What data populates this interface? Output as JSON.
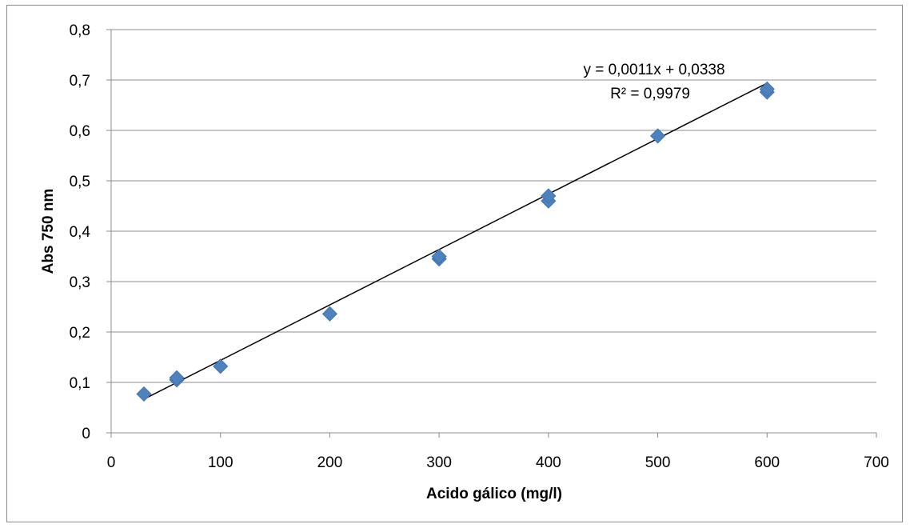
{
  "chart_data": {
    "type": "scatter",
    "xlabel": "Acido gálico (mg/l)",
    "ylabel": "Abs 750 nm",
    "xlim": [
      0,
      700
    ],
    "ylim": [
      0,
      0.8
    ],
    "x_ticks": [
      0,
      100,
      200,
      300,
      400,
      500,
      600,
      700
    ],
    "x_tick_labels": [
      "0",
      "100",
      "200",
      "300",
      "400",
      "500",
      "600",
      "700"
    ],
    "y_ticks": [
      0,
      0.1,
      0.2,
      0.3,
      0.4,
      0.5,
      0.6,
      0.7,
      0.8
    ],
    "y_tick_labels": [
      "0",
      "0,1",
      "0,2",
      "0,3",
      "0,4",
      "0,5",
      "0,6",
      "0,7",
      "0,8"
    ],
    "grid": "horizontal",
    "marker_color": "#4f81bd",
    "trendline_color": "#000000",
    "points": [
      {
        "x": 30,
        "y": 0.077
      },
      {
        "x": 60,
        "y": 0.105
      },
      {
        "x": 60,
        "y": 0.109
      },
      {
        "x": 100,
        "y": 0.132
      },
      {
        "x": 200,
        "y": 0.236
      },
      {
        "x": 300,
        "y": 0.345
      },
      {
        "x": 300,
        "y": 0.35
      },
      {
        "x": 400,
        "y": 0.46
      },
      {
        "x": 400,
        "y": 0.47
      },
      {
        "x": 500,
        "y": 0.589
      },
      {
        "x": 600,
        "y": 0.676
      },
      {
        "x": 600,
        "y": 0.682
      }
    ],
    "trendline": {
      "slope": 0.0011,
      "intercept": 0.0338,
      "x_range": [
        30,
        600
      ],
      "equation_label": "y = 0,0011x + 0,0338",
      "r2_label": "R² = 0,9979"
    }
  }
}
